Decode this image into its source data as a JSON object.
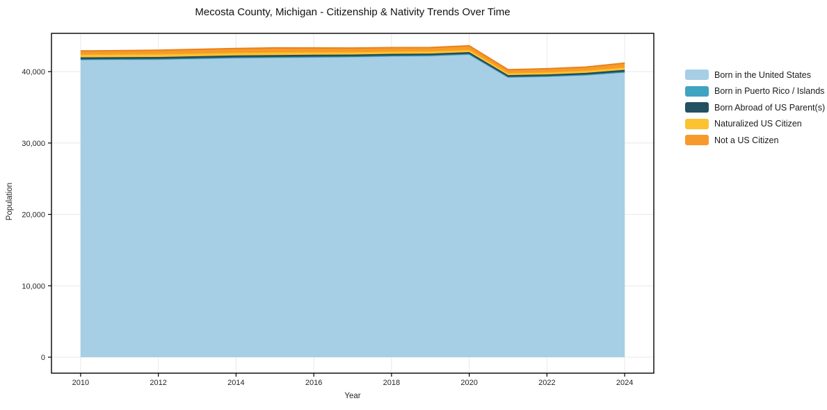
{
  "chart_data": {
    "type": "area",
    "stacked": true,
    "title": "Mecosta County, Michigan - Citizenship & Nativity Trends Over Time",
    "xlabel": "Year",
    "ylabel": "Population",
    "grid": true,
    "legend_position": "right-outside",
    "x": [
      2010,
      2011,
      2012,
      2013,
      2014,
      2015,
      2016,
      2017,
      2018,
      2019,
      2020,
      2021,
      2022,
      2023,
      2024
    ],
    "series": [
      {
        "name": "Born in the United States",
        "color": "#a6cfe5",
        "line_color": "#7db8d4",
        "values": [
          41650,
          41680,
          41700,
          41800,
          41900,
          41950,
          42000,
          42050,
          42150,
          42200,
          42400,
          39200,
          39300,
          39500,
          39900
        ]
      },
      {
        "name": "Born in Puerto Rico / Islands",
        "color": "#3fa3c2",
        "line_color": "#338fad",
        "values": [
          90,
          90,
          95,
          95,
          100,
          100,
          100,
          95,
          95,
          90,
          90,
          80,
          80,
          85,
          90
        ]
      },
      {
        "name": "Born Abroad of US Parent(s)",
        "color": "#245062",
        "line_color": "#1c4254",
        "values": [
          260,
          255,
          260,
          265,
          260,
          265,
          260,
          250,
          245,
          240,
          245,
          225,
          225,
          235,
          255
        ]
      },
      {
        "name": "Naturalized US Citizen",
        "color": "#fcc232",
        "line_color": "#f2ad17",
        "values": [
          430,
          430,
          440,
          430,
          420,
          430,
          420,
          400,
          390,
          370,
          370,
          340,
          345,
          350,
          390
        ]
      },
      {
        "name": "Not a US Citizen",
        "color": "#f8992b",
        "line_color": "#e8821c",
        "values": [
          470,
          480,
          500,
          530,
          560,
          580,
          540,
          510,
          480,
          470,
          510,
          430,
          455,
          470,
          560
        ]
      }
    ],
    "xticks": {
      "values": [
        2010,
        2012,
        2014,
        2016,
        2018,
        2020,
        2022,
        2024
      ],
      "labels": [
        "2010",
        "2012",
        "2014",
        "2016",
        "2018",
        "2020",
        "2022",
        "2024"
      ]
    },
    "yticks": {
      "values": [
        0,
        10000,
        20000,
        30000,
        40000
      ],
      "labels": [
        "0",
        "10,000",
        "20,000",
        "30,000",
        "40,000"
      ]
    },
    "xlim": [
      2009.25,
      2024.75
    ],
    "ylim": [
      -2240,
      45360
    ],
    "colors": {
      "spine": "#000000",
      "gridline": "#e8e8e8",
      "tick_label": "#262626",
      "background": "#ffffff"
    }
  }
}
